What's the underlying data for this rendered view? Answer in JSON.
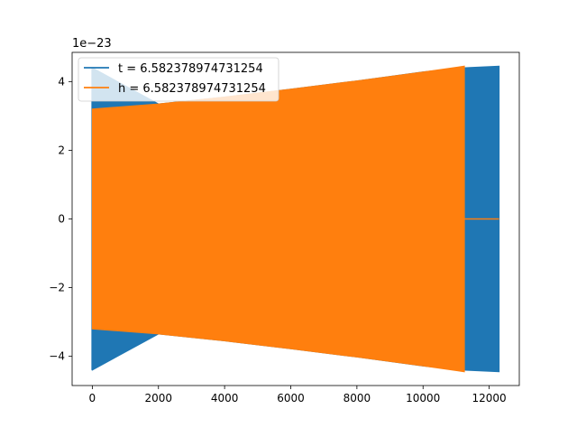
{
  "chart_data": {
    "type": "line",
    "title": "",
    "xlabel": "",
    "ylabel": "",
    "y_offset_label": "1e−23",
    "xlim": [
      -610,
      12910
    ],
    "ylim": [
      -4.85,
      4.85
    ],
    "xticks": [
      0,
      2000,
      4000,
      6000,
      8000,
      10000,
      12000
    ],
    "xtick_labels": [
      "0",
      "2000",
      "4000",
      "6000",
      "8000",
      "10000",
      "12000"
    ],
    "yticks": [
      -4,
      -2,
      0,
      2,
      4
    ],
    "ytick_labels": [
      "−4",
      "−2",
      "0",
      "2",
      "4"
    ],
    "grid": false,
    "legend_position": "top-left",
    "series": [
      {
        "name": "t = 6.582378974731254",
        "color": "#1f77b4",
        "envelope": {
          "x": [
            0,
            2000,
            4000,
            6000,
            8000,
            10000,
            11200,
            12300
          ],
          "upper": [
            4.4,
            3.35,
            3.55,
            3.78,
            4.02,
            4.28,
            4.4,
            4.45
          ],
          "lower": [
            -4.4,
            -3.35,
            -3.55,
            -3.78,
            -4.02,
            -4.28,
            -4.4,
            -4.45
          ]
        },
        "spike": {
          "x": 0,
          "upper": 4.4,
          "lower": -4.4
        },
        "end_x": 12300
      },
      {
        "name": "h = 6.582378974731254",
        "color": "#ff7f0e",
        "envelope": {
          "x": [
            0,
            2000,
            4000,
            6000,
            8000,
            10000,
            11250
          ],
          "upper": [
            3.2,
            3.35,
            3.55,
            3.78,
            4.02,
            4.28,
            4.45
          ],
          "lower": [
            -3.2,
            -3.35,
            -3.55,
            -3.78,
            -4.02,
            -4.28,
            -4.45
          ]
        },
        "zero_tail": {
          "x_start": 11250,
          "x_end": 12300,
          "value": 0
        }
      }
    ]
  }
}
